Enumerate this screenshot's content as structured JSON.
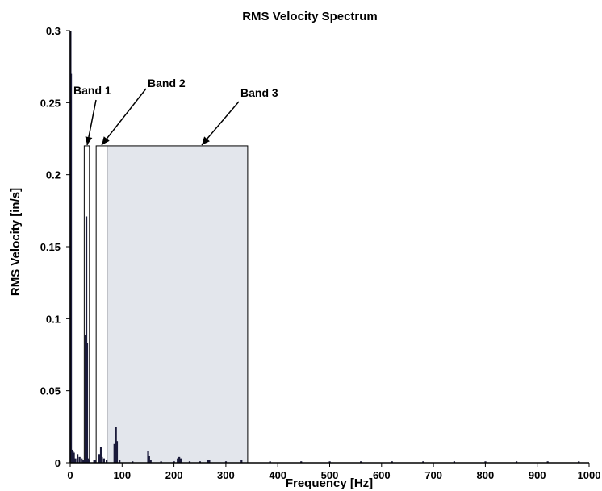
{
  "chart_data": {
    "type": "bar",
    "title": "RMS Velocity Spectrum",
    "xlabel": "Frequency [Hz]",
    "ylabel": "RMS Velocity [in/s]",
    "xlim": [
      0,
      1000
    ],
    "ylim": [
      0,
      0.3
    ],
    "xticks": [
      0,
      100,
      200,
      300,
      400,
      500,
      600,
      700,
      800,
      900,
      1000
    ],
    "yticks": [
      0,
      0.05,
      0.1,
      0.15,
      0.2,
      0.25,
      0.3
    ],
    "xtick_labels": [
      "0",
      "100",
      "200",
      "300",
      "400",
      "500",
      "600",
      "700",
      "800",
      "900",
      "1000"
    ],
    "ytick_labels": [
      "0",
      "0.05",
      "0.1",
      "0.15",
      "0.2",
      "0.25",
      "0.3"
    ],
    "grid": false,
    "bar_color": "#1a1a3a",
    "band_fill": "#e3e6ec",
    "series": [
      {
        "x": [
          0.5,
          1.5,
          3,
          5,
          7,
          10,
          14,
          18,
          22,
          25,
          28,
          29.5,
          31,
          32.5,
          34,
          37,
          46,
          48,
          56,
          59,
          61,
          65,
          70,
          85,
          88,
          90,
          95,
          120,
          150,
          152,
          155,
          175,
          200,
          207,
          210,
          213,
          230,
          250,
          265,
          268,
          300,
          330,
          385,
          445,
          500,
          560,
          620,
          680,
          740,
          800,
          860,
          920,
          980
        ],
        "values": [
          0.3,
          0.27,
          0.009,
          0.008,
          0.007,
          0.003,
          0.006,
          0.004,
          0.003,
          0.002,
          0.002,
          0.089,
          0.171,
          0.083,
          0.003,
          0.002,
          0.002,
          0.002,
          0.006,
          0.011,
          0.004,
          0.003,
          0.002,
          0.013,
          0.025,
          0.015,
          0.002,
          0.001,
          0.008,
          0.005,
          0.002,
          0.001,
          0.001,
          0.003,
          0.004,
          0.003,
          0.001,
          0.001,
          0.002,
          0.002,
          0.001,
          0.002,
          0.001,
          0.001,
          0.001,
          0.001,
          0.001,
          0.001,
          0.001,
          0.001,
          0.001,
          0.001,
          0.001
        ]
      }
    ],
    "bands": [
      {
        "label": "Band 1",
        "x0": 27,
        "x1": 37,
        "top": 0.22
      },
      {
        "label": "Band 2",
        "x0": 50,
        "x1": 71,
        "top": 0.22
      },
      {
        "label": "Band 3",
        "x0": 71,
        "x1": 342,
        "top": 0.22
      }
    ]
  }
}
